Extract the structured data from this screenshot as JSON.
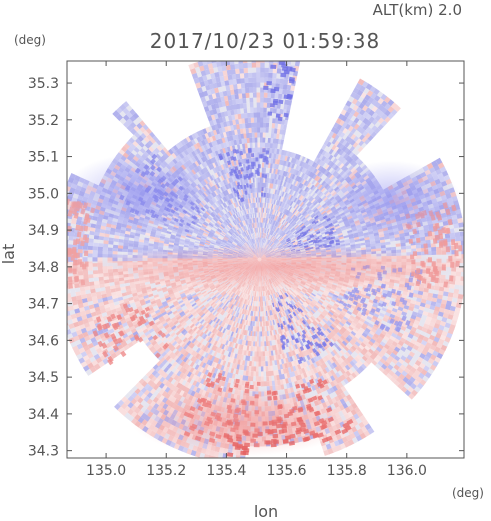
{
  "header": {
    "alt_label": "ALT(km)  2.0",
    "timestamp": "2017/10/23 01:59:38",
    "y_unit": "(deg)",
    "x_unit": "(deg)"
  },
  "chart_data": {
    "type": "heatmap",
    "title": "2017/10/23 01:59:38",
    "subtitle": "ALT(km)  2.0",
    "xlabel": "lon",
    "ylabel": "lat",
    "x_unit": "(deg)",
    "y_unit": "(deg)",
    "xlim": [
      134.87,
      136.19
    ],
    "ylim": [
      34.28,
      35.36
    ],
    "x_ticks": [
      "135.0",
      "135.2",
      "135.4",
      "135.6",
      "135.8",
      "136.0"
    ],
    "y_ticks": [
      "34.3",
      "34.4",
      "34.5",
      "34.6",
      "34.7",
      "34.8",
      "34.9",
      "35.0",
      "35.1",
      "35.2",
      "35.3"
    ],
    "radar_center": [
      135.51,
      34.82
    ],
    "colors": {
      "positive": "#f08080",
      "negative": "#8080f0",
      "neutral": "#e8e8f8"
    }
  }
}
